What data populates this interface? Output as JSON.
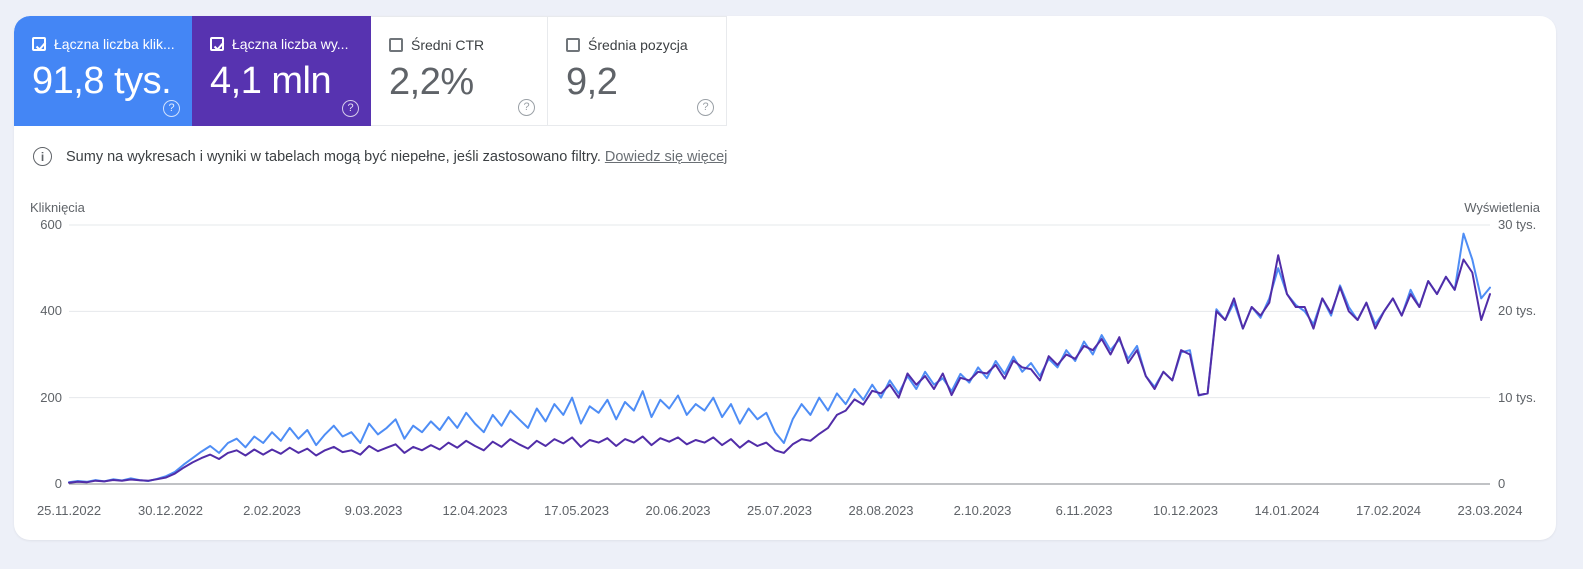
{
  "colors": {
    "page_background": "#edf0f8",
    "clicks_card": "#4486f5",
    "impressions_card": "#5733b0",
    "clicks_line": "#4e8df5",
    "impressions_line": "#512da8"
  },
  "cards": [
    {
      "label": "Łączna liczba klik...",
      "value": "91,8 tys.",
      "checked": true,
      "help_icon": "?"
    },
    {
      "label": "Łączna liczba wy...",
      "value": "4,1 mln",
      "checked": true,
      "help_icon": "?"
    },
    {
      "label": "Średni CTR",
      "value": "2,2%",
      "checked": false,
      "help_icon": "?"
    },
    {
      "label": "Średnia pozycja",
      "value": "9,2",
      "checked": false,
      "help_icon": "?"
    }
  ],
  "banner": {
    "icon": "i",
    "text": "Sumy na wykresach i wyniki w tabelach mogą być niepełne, jeśli zastosowano filtry.",
    "link": "Dowiedz się więcej"
  },
  "chart_data": {
    "type": "line",
    "grid": "horizontal-only",
    "left_axis": {
      "title": "Kliknięcia",
      "ticks": [
        "0",
        "200",
        "400",
        "600"
      ],
      "max": 600
    },
    "right_axis": {
      "title": "Wyświetlenia",
      "ticks": [
        "0",
        "10 tys.",
        "20 tys.",
        "30 tys."
      ],
      "max": 30000
    },
    "x_labels": [
      "25.11.2022",
      "30.12.2022",
      "2.02.2023",
      "9.03.2023",
      "12.04.2023",
      "17.05.2023",
      "20.06.2023",
      "25.07.2023",
      "28.08.2023",
      "2.10.2023",
      "6.11.2023",
      "10.12.2023",
      "14.01.2024",
      "17.02.2024",
      "23.03.2024"
    ],
    "series": [
      {
        "name": "Kliknięcia",
        "axis": "left",
        "color": "#4e8df5",
        "values": [
          4,
          7,
          5,
          9,
          6,
          11,
          8,
          13,
          9,
          7,
          12,
          18,
          28,
          45,
          60,
          75,
          88,
          72,
          95,
          105,
          85,
          110,
          95,
          120,
          100,
          130,
          105,
          125,
          90,
          115,
          135,
          110,
          120,
          95,
          140,
          115,
          130,
          150,
          105,
          135,
          120,
          145,
          125,
          155,
          130,
          165,
          140,
          120,
          160,
          135,
          170,
          150,
          130,
          175,
          145,
          185,
          160,
          200,
          140,
          180,
          165,
          195,
          150,
          190,
          170,
          215,
          155,
          195,
          175,
          205,
          160,
          185,
          170,
          200,
          155,
          185,
          140,
          175,
          150,
          165,
          120,
          95,
          150,
          185,
          160,
          200,
          170,
          210,
          185,
          220,
          195,
          230,
          200,
          240,
          210,
          250,
          220,
          260,
          230,
          245,
          215,
          255,
          235,
          270,
          245,
          285,
          255,
          295,
          260,
          280,
          250,
          290,
          270,
          310,
          285,
          330,
          300,
          345,
          310,
          335,
          290,
          320,
          250,
          225,
          260,
          240,
          305,
          310,
          205,
          210,
          405,
          380,
          420,
          360,
          410,
          385,
          430,
          500,
          440,
          415,
          400,
          370,
          430,
          390,
          460,
          410,
          380,
          420,
          370,
          400,
          430,
          390,
          450,
          410,
          470,
          440,
          480,
          450,
          580,
          520,
          430,
          455
        ]
      },
      {
        "name": "Wyświetlenia",
        "axis": "right",
        "color": "#512da8",
        "values": [
          150,
          260,
          200,
          380,
          300,
          460,
          380,
          520,
          430,
          380,
          560,
          750,
          1200,
          1900,
          2500,
          3000,
          3400,
          2900,
          3600,
          3900,
          3300,
          4000,
          3400,
          4000,
          3500,
          4200,
          3600,
          4100,
          3300,
          3900,
          4300,
          3700,
          3900,
          3400,
          4400,
          3800,
          4200,
          4600,
          3600,
          4300,
          3900,
          4500,
          4000,
          4800,
          4200,
          5000,
          4400,
          3900,
          4900,
          4300,
          5200,
          4600,
          4100,
          5000,
          4400,
          5200,
          4700,
          5400,
          4300,
          5100,
          4800,
          5300,
          4400,
          5200,
          4800,
          5500,
          4500,
          5300,
          4900,
          5400,
          4600,
          5100,
          4800,
          5400,
          4500,
          5200,
          4200,
          5000,
          4400,
          4800,
          3900,
          3600,
          4600,
          5200,
          5000,
          5800,
          6500,
          8000,
          8500,
          9800,
          9200,
          10800,
          10500,
          11500,
          10000,
          12800,
          11500,
          12500,
          11000,
          12800,
          10300,
          12300,
          12000,
          13000,
          12800,
          13800,
          12200,
          14300,
          13500,
          13300,
          12000,
          14800,
          13800,
          15000,
          14500,
          16000,
          15500,
          16800,
          15000,
          17000,
          14000,
          15500,
          12500,
          11000,
          13000,
          12000,
          15500,
          15000,
          10300,
          10500,
          20000,
          19000,
          21500,
          18000,
          20500,
          19500,
          21000,
          26500,
          22000,
          20500,
          20500,
          18000,
          21500,
          19800,
          22800,
          20000,
          19000,
          21000,
          18000,
          20000,
          21500,
          19500,
          22000,
          20500,
          23500,
          22000,
          24000,
          22500,
          26000,
          24500,
          19000,
          22000
        ]
      }
    ]
  }
}
